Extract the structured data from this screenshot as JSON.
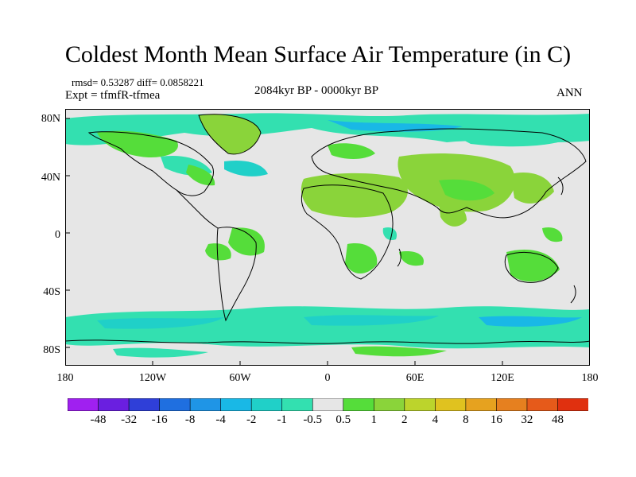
{
  "header": {
    "title": "Coldest Month Mean Surface Air Temperature (in C)",
    "stats": "rmsd= 0.53287 diff= 0.0858221",
    "experiment": "Expt = tfmfR-tfmea",
    "period": "2084kyr BP - 0000kyr BP",
    "season": "ANN"
  },
  "axes": {
    "lat_labels": [
      "80N",
      "40N",
      "0",
      "40S",
      "80S"
    ],
    "lon_labels": [
      "180",
      "120W",
      "60W",
      "0",
      "60E",
      "120E",
      "180"
    ]
  },
  "colorbar": {
    "labels": [
      "-48",
      "-32",
      "-16",
      "-8",
      "-4",
      "-2",
      "-1",
      "-0.5",
      "0.5",
      "1",
      "2",
      "4",
      "8",
      "16",
      "32",
      "48"
    ],
    "colors": [
      "#a020f0",
      "#6a1fe0",
      "#2f3fd8",
      "#1f6fe0",
      "#1f95e6",
      "#19b8e6",
      "#20d0c8",
      "#33e0b0",
      "#e6e6e6",
      "#55dd3a",
      "#8ad43a",
      "#bcd42c",
      "#e0c21f",
      "#e6a21f",
      "#e6801f",
      "#e65a1a",
      "#e0300f"
    ]
  },
  "map_colors": {
    "ocean_neutral": "#e6e6e6",
    "cool_light": "#33e0b0",
    "cool_medium": "#20d0c8",
    "cool_strong": "#19b8e6",
    "warm_light": "#55dd3a",
    "warm_medium": "#8ad43a",
    "coast": "#000000"
  }
}
